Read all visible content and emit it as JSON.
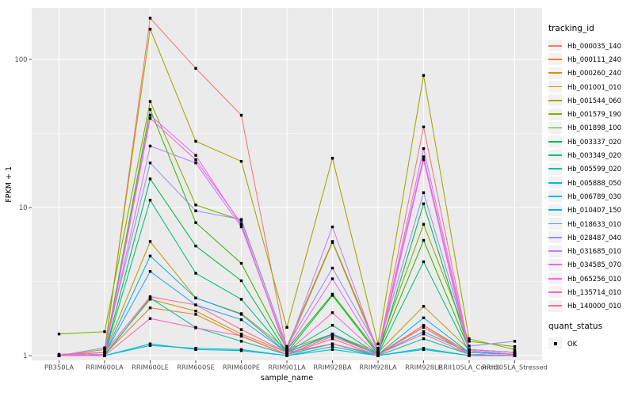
{
  "colors": {
    "panel_bg": "#EBEBEB",
    "grid_major": "#FFFFFF",
    "grid_minor": "#FFFFFF",
    "tick_text": "#4D4D4D",
    "tick_mark": "#333333",
    "point": "#000000"
  },
  "axes": {
    "x_title": "sample_name",
    "y_title": "FPKM + 1"
  },
  "legend": {
    "tracking_title": "tracking_id",
    "quant_title": "quant_status",
    "quant_label": "OK"
  },
  "chart_data": {
    "type": "line",
    "x_type": "categorical",
    "y_scale": "log10",
    "ylim": [
      0.93,
      223
    ],
    "y_ticks": [
      1,
      10,
      100
    ],
    "grid": "on",
    "legend_position": "right",
    "xlabel": "sample_name",
    "ylabel": "FPKM + 1",
    "title": "",
    "point_marker": "black-filled-square",
    "point_legend": {
      "title": "quant_status",
      "label": "OK"
    },
    "categories": [
      "PB350LA",
      "RRIM600LA",
      "RRIM600LE",
      "RRIM600SE",
      "RRIM600PE",
      "RRIM901LA",
      "RRIM928BA",
      "RRIM928LA",
      "RRIM928LE",
      "RRII105LA_Control",
      "RRII105LA_Stressed"
    ],
    "series": [
      {
        "name": "Hb_000035_140",
        "color": "#F8766D",
        "values": [
          1.0,
          1.05,
          190,
          87,
          42,
          1.1,
          5.8,
          1.05,
          35,
          1.1,
          1.05
        ]
      },
      {
        "name": "Hb_000111_240",
        "color": "#E88526",
        "values": [
          1.0,
          1.02,
          2.1,
          1.9,
          1.35,
          1.02,
          1.35,
          1.02,
          1.55,
          1.02,
          1.0
        ]
      },
      {
        "name": "Hb_000260_240",
        "color": "#D89000",
        "values": [
          1.0,
          1.02,
          2.4,
          2.0,
          1.4,
          1.05,
          1.4,
          1.02,
          1.6,
          1.05,
          1.02
        ]
      },
      {
        "name": "Hb_001001_010",
        "color": "#C09B00",
        "values": [
          1.0,
          1.05,
          5.9,
          2.45,
          1.92,
          1.1,
          1.4,
          1.05,
          2.15,
          1.1,
          1.05
        ]
      },
      {
        "name": "Hb_001544_060",
        "color": "#A3A500",
        "values": [
          1.0,
          1.1,
          160,
          28,
          20.5,
          1.55,
          21.5,
          1.2,
          78,
          1.3,
          1.1
        ]
      },
      {
        "name": "Hb_001579_190",
        "color": "#7CAE00",
        "values": [
          1.4,
          1.45,
          52,
          10.4,
          8.2,
          1.15,
          5.9,
          1.1,
          7.7,
          1.25,
          1.15
        ]
      },
      {
        "name": "Hb_001898_100",
        "color": "#39B600",
        "values": [
          1.0,
          1.05,
          46,
          7.9,
          4.2,
          1.1,
          2.6,
          1.05,
          6.0,
          1.1,
          1.05
        ]
      },
      {
        "name": "Hb_003337_020",
        "color": "#00BB4E",
        "values": [
          1.0,
          1.02,
          15.6,
          5.5,
          3.2,
          1.05,
          2.55,
          1.02,
          10.6,
          1.08,
          1.02
        ]
      },
      {
        "name": "Hb_003349_020",
        "color": "#00BF7D",
        "values": [
          1.0,
          1.02,
          11.2,
          3.6,
          2.4,
          1.05,
          1.6,
          1.02,
          4.3,
          1.05,
          1.02
        ]
      },
      {
        "name": "Hb_005599_020",
        "color": "#00C1A3",
        "values": [
          1.0,
          1.0,
          2.45,
          1.55,
          1.25,
          1.02,
          1.2,
          1.0,
          1.3,
          1.02,
          1.0
        ]
      },
      {
        "name": "Hb_005888_050",
        "color": "#00BFC4",
        "values": [
          1.0,
          1.0,
          1.17,
          1.12,
          1.1,
          1.0,
          1.15,
          1.0,
          1.12,
          1.0,
          1.0
        ]
      },
      {
        "name": "Hb_006789_030",
        "color": "#00BAE0",
        "values": [
          1.0,
          1.0,
          1.2,
          1.1,
          1.08,
          1.0,
          1.1,
          1.0,
          1.1,
          1.0,
          1.0
        ]
      },
      {
        "name": "Hb_010407_150",
        "color": "#00B0F6",
        "values": [
          1.0,
          1.02,
          4.7,
          2.45,
          1.9,
          1.05,
          1.4,
          1.02,
          1.8,
          1.05,
          1.02
        ]
      },
      {
        "name": "Hb_018633_010",
        "color": "#35A2FF",
        "values": [
          1.0,
          1.02,
          3.7,
          2.2,
          1.75,
          1.05,
          1.38,
          1.02,
          1.45,
          1.05,
          1.02
        ]
      },
      {
        "name": "Hb_028487_040",
        "color": "#9590FF",
        "values": [
          1.0,
          1.13,
          20,
          9.5,
          8.3,
          1.15,
          3.9,
          1.12,
          12.6,
          1.16,
          1.25
        ]
      },
      {
        "name": "Hb_031685_010",
        "color": "#C77CFF",
        "values": [
          1.0,
          1.05,
          26,
          20,
          7.4,
          1.1,
          7.4,
          1.05,
          25,
          1.1,
          1.05
        ]
      },
      {
        "name": "Hb_034585_070",
        "color": "#E76BF3",
        "values": [
          1.0,
          1.02,
          42,
          22.5,
          7.6,
          1.1,
          3.3,
          1.05,
          22,
          1.08,
          1.02
        ]
      },
      {
        "name": "Hb_065256_010",
        "color": "#FA62DB",
        "values": [
          1.0,
          1.0,
          40,
          21,
          7.8,
          1.05,
          1.95,
          1.02,
          21,
          1.02,
          1.0
        ]
      },
      {
        "name": "Hb_135714_010",
        "color": "#FF62BC",
        "values": [
          1.0,
          1.0,
          1.78,
          1.54,
          1.36,
          1.02,
          1.3,
          1.0,
          1.6,
          1.02,
          1.0
        ]
      },
      {
        "name": "Hb_140000_010",
        "color": "#FF6A98",
        "values": [
          1.02,
          1.05,
          2.5,
          2.2,
          1.5,
          1.05,
          1.2,
          1.02,
          1.4,
          1.02,
          1.0
        ]
      }
    ]
  }
}
